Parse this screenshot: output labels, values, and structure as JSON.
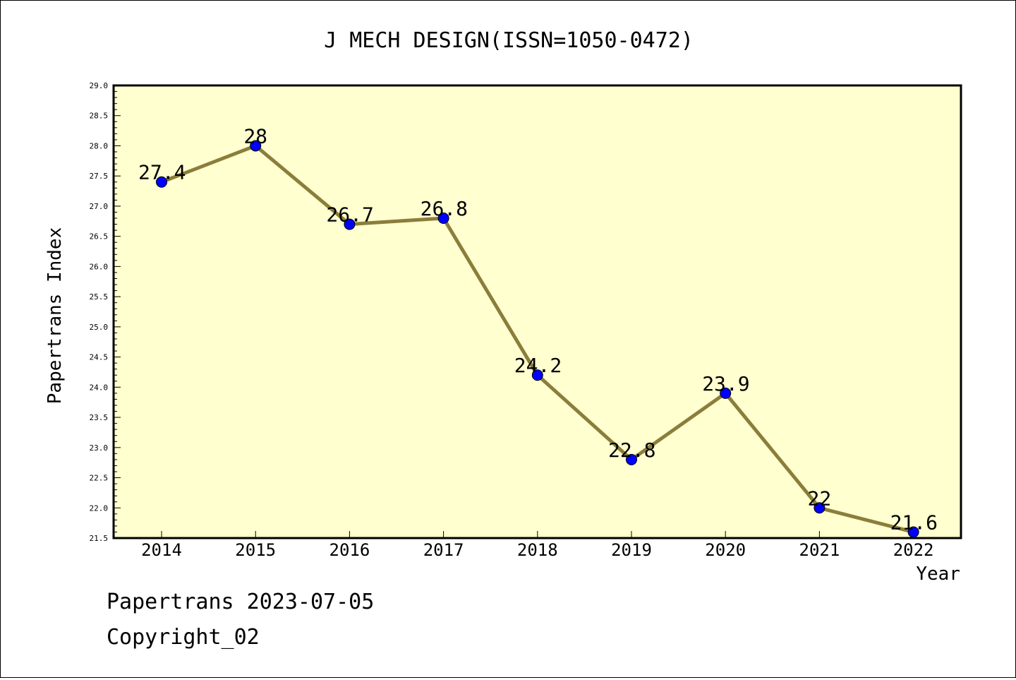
{
  "chart_data": {
    "type": "line",
    "title": "J MECH DESIGN(ISSN=1050-0472)",
    "xlabel": "Year",
    "ylabel": "Papertrans Index",
    "categories": [
      "2014",
      "2015",
      "2016",
      "2017",
      "2018",
      "2019",
      "2020",
      "2021",
      "2022"
    ],
    "values": [
      27.4,
      28,
      26.7,
      26.8,
      24.2,
      22.8,
      23.9,
      22,
      21.6
    ],
    "data_labels": [
      "27.4",
      "28",
      "26.7",
      "26.8",
      "24.2",
      "22.8",
      "23.9",
      "22",
      "21.6"
    ],
    "ylim": [
      21.5,
      29.0
    ],
    "yticks": [
      "21.5",
      "22.0",
      "22.5",
      "23.0",
      "23.5",
      "24.0",
      "24.5",
      "25.0",
      "25.5",
      "26.0",
      "26.5",
      "27.0",
      "27.5",
      "28.0",
      "28.5",
      "29.0"
    ],
    "grid": false,
    "legend": "none",
    "colors": {
      "plot_background": "#ffffd0",
      "line": "#8b7d3a",
      "marker": "#0000ff"
    }
  },
  "footer": {
    "source": "Papertrans 2023-07-05",
    "copyright": "Copyright_02"
  }
}
